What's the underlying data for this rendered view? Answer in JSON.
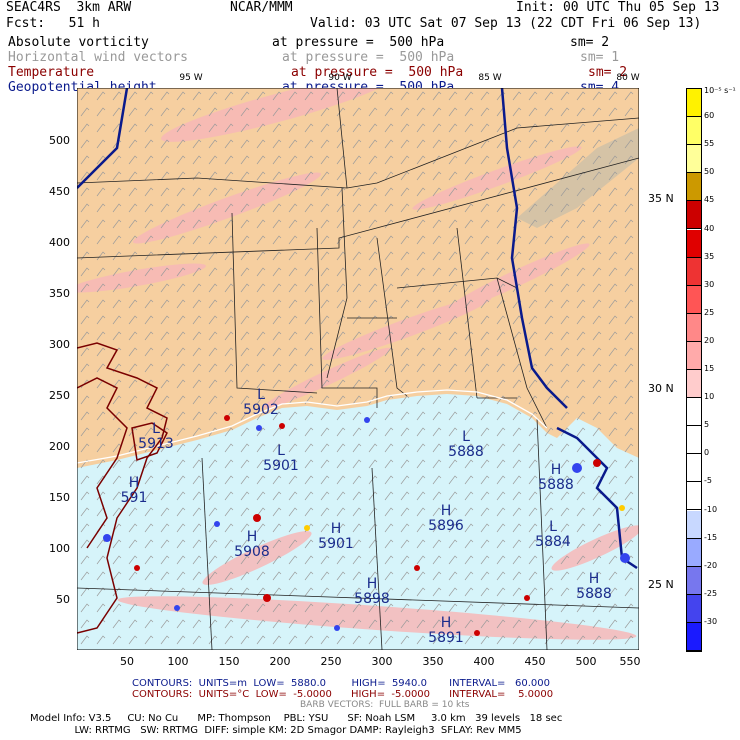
{
  "header": {
    "model": "SEAC4RS  3km ARW",
    "org": "NCAR/MMM",
    "init": "Init: 00 UTC Thu 05 Sep 13",
    "fcst": "Fcst:   51 h",
    "valid": "Valid: 03 UTC Sat 07 Sep 13 (22 CDT Fri 06 Sep 13)",
    "fields": [
      {
        "name": "Absolute vorticity",
        "pressure": "at pressure =  500 hPa",
        "sm": "sm= 2",
        "color": "#000000"
      },
      {
        "name": "Horizontal wind vectors",
        "pressure": "at pressure =  500 hPa",
        "sm": "sm= 1",
        "color": "#999999"
      },
      {
        "name": "Temperature",
        "pressure": "at pressure =  500 hPa",
        "sm": "sm= 2",
        "color": "#8b0000"
      },
      {
        "name": "Geopotential height",
        "pressure": "at pressure =  500 hPa",
        "sm": "sm= 4",
        "color": "#0a1a8c"
      }
    ]
  },
  "axes": {
    "y_ticks": [
      "500",
      "450",
      "400",
      "350",
      "300",
      "250",
      "200",
      "150",
      "100",
      "50"
    ],
    "x_ticks": [
      "50",
      "100",
      "150",
      "200",
      "250",
      "300",
      "350",
      "400",
      "450",
      "500",
      "550"
    ],
    "lat_labels": [
      "35 N",
      "30 N",
      "25 N"
    ],
    "lon_labels": [
      "95 W",
      "90 W",
      "85 W",
      "80 W"
    ]
  },
  "colorbar": {
    "unit_label": "10⁻⁵ s⁻¹",
    "labels": [
      "60",
      "55",
      "50",
      "45",
      "40",
      "35",
      "30",
      "25",
      "20",
      "15",
      "10",
      "5",
      "0",
      "-5",
      "-10",
      "-15",
      "-20",
      "-25",
      "-30"
    ],
    "colors": [
      "#fff200",
      "#ffff66",
      "#ffff99",
      "#cc9900",
      "#cc0000",
      "#e00000",
      "#ee3333",
      "#ff5555",
      "#ff8888",
      "#ffaaaa",
      "#ffcccc",
      "#ffffff",
      "#ffffff",
      "#ffffff",
      "#ffffff",
      "#c8d8ff",
      "#99aaff",
      "#7777ee",
      "#4444ee",
      "#1a1aff"
    ]
  },
  "centers": [
    {
      "type": "L",
      "value": "5902"
    },
    {
      "type": "L",
      "value": "5901"
    },
    {
      "type": "L",
      "value": "5888"
    },
    {
      "type": "H",
      "value": "5888"
    },
    {
      "type": "H",
      "value": "5896"
    },
    {
      "type": "H",
      "value": "5908"
    },
    {
      "type": "H",
      "value": "5901"
    },
    {
      "type": "L",
      "value": "5884"
    },
    {
      "type": "H",
      "value": "5898"
    },
    {
      "type": "H",
      "value": "5891"
    },
    {
      "type": "H",
      "value": "5888"
    },
    {
      "type": "L",
      "value": "5913"
    },
    {
      "type": "H",
      "value": "591"
    }
  ],
  "footer": {
    "contours1": "CONTOURS:  UNITS=m  LOW=  5880.0        HIGH=  5940.0       INTERVAL=   60.000",
    "contours2": "CONTOURS:  UNITS=°C  LOW=  -5.0000      HIGH=  -5.0000      INTERVAL=    5.0000",
    "barbs": "BARB VECTORS:  FULL BARB = 10 kts",
    "model_info1": "Model Info: V3.5     CU: No Cu      MP: Thompson    PBL: YSU      SF: Noah LSM     3.0 km   39 levels   18 sec",
    "model_info2": "              LW: RRTMG   SW: RRTMG  DIFF: simple KM: 2D Smagor DAMP: Rayleigh3  SFLAY: Rev MM5"
  }
}
